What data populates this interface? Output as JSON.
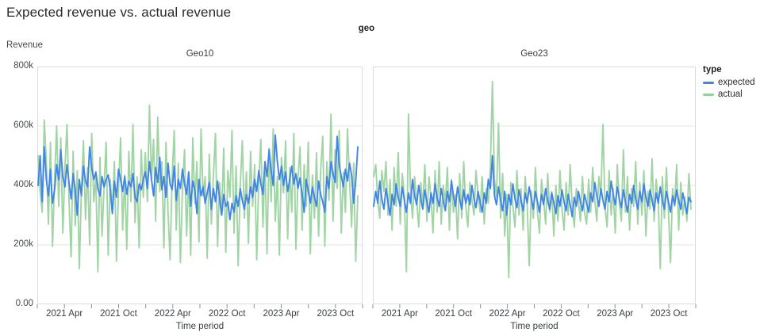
{
  "page": {
    "title": "Expected revenue vs. actual revenue"
  },
  "colors": {
    "expected_blue": "#4285E8",
    "actual_green": "#96CF9A",
    "gridline": "#e4e4e4",
    "panel_border": "#d9dadc",
    "tick": "#8a8f94",
    "axis_text": "#3c4043"
  },
  "chart_data": {
    "type": "line",
    "title": "Expected revenue vs. actual revenue",
    "facet_header": "geo",
    "xlabel": "Time period",
    "ylabel": "Revenue",
    "ylim": [
      0,
      800000
    ],
    "y_tick_labels": [
      "800k",
      "600k",
      "400k",
      "200k",
      "0.00"
    ],
    "x_major_tick_labels": [
      "2021 Apr",
      "2021 Oct",
      "2022 Apr",
      "2022 Oct",
      "2023 Apr",
      "2023 Oct"
    ],
    "x_range": [
      "2021-01",
      "2023-12"
    ],
    "x_frequency": "weekly",
    "values_unit": "revenue in thousands (k)",
    "grid": "horizontal-only",
    "legend": {
      "title": "type",
      "position": "right",
      "items": [
        {
          "label": "expected",
          "color": "#4285E8"
        },
        {
          "label": "actual",
          "color": "#96CF9A"
        }
      ]
    },
    "facets": [
      {
        "name": "Geo10",
        "series": [
          {
            "name": "expected",
            "color": "#4285E8",
            "values": [
              400,
              500,
              345,
              530,
              420,
              365,
              455,
              340,
              385,
              470,
              420,
              520,
              430,
              395,
              470,
              410,
              355,
              440,
              385,
              300,
              420,
              365,
              465,
              415,
              395,
              530,
              460,
              420,
              445,
              390,
              365,
              430,
              395,
              420,
              435,
              385,
              305,
              415,
              360,
              455,
              420,
              380,
              430,
              370,
              415,
              395,
              440,
              360,
              345,
              405,
              385,
              420,
              445,
              390,
              480,
              420,
              365,
              460,
              410,
              495,
              385,
              430,
              360,
              475,
              405,
              385,
              465,
              350,
              420,
              390,
              455,
              405,
              370,
              445,
              330,
              415,
              385,
              305,
              420,
              365,
              395,
              340,
              375,
              410,
              320,
              390,
              345,
              415,
              355,
              300,
              370,
              330,
              345,
              285,
              340,
              310,
              365,
              330,
              390,
              350,
              320,
              370,
              340,
              395,
              360,
              420,
              380,
              450,
              405,
              370,
              480,
              430,
              520,
              450,
              400,
              570,
              480,
              420,
              465,
              400,
              445,
              380,
              420,
              465,
              405,
              440,
              390,
              425,
              370,
              310,
              420,
              380,
              340,
              395,
              360,
              330,
              415,
              370,
              345,
              310,
              430,
              390,
              480,
              440,
              410,
              565,
              470,
              430,
              395,
              455,
              415,
              475,
              435,
              340,
              415,
              530
            ]
          },
          {
            "name": "actual",
            "color": "#96CF9A",
            "values": [
              500,
              380,
              310,
              620,
              480,
              270,
              545,
              195,
              420,
              600,
              330,
              560,
              240,
              455,
              605,
              350,
              160,
              515,
              265,
              450,
              120,
              385,
              550,
              285,
              460,
              200,
              575,
              345,
              430,
              110,
              495,
              230,
              395,
              545,
              165,
              420,
              310,
              480,
              145,
              390,
              560,
              250,
              435,
              185,
              515,
              345,
              605,
              275,
              430,
              190,
              520,
              360,
              510,
              345,
              670,
              420,
              555,
              280,
              630,
              380,
              480,
              190,
              545,
              310,
              150,
              430,
              585,
              250,
              475,
              140,
              390,
              520,
              230,
              445,
              165,
              560,
              340,
              480,
              210,
              590,
              365,
              430,
              155,
              505,
              270,
              435,
              575,
              195,
              410,
              300,
              525,
              175,
              450,
              360,
              585,
              240,
              465,
              130,
              395,
              550,
              290,
              445,
              205,
              515,
              330,
              470,
              150,
              420,
              555,
              260,
              480,
              170,
              525,
              345,
              590,
              280,
              430,
              165,
              495,
              375,
              550,
              220,
              460,
              310,
              575,
              185,
              420,
              530,
              250,
              470,
              330,
              545,
              170,
              435,
              290,
              510,
              230,
              450,
              565,
              195,
              480,
              350,
              640,
              280,
              520,
              390,
              585,
              240,
              445,
              310,
              590,
              420,
              260,
              475,
              145,
              365
            ]
          }
        ]
      },
      {
        "name": "Geo23",
        "series": [
          {
            "name": "expected",
            "color": "#4285E8",
            "values": [
              330,
              380,
              340,
              415,
              355,
              320,
              390,
              345,
              300,
              370,
              335,
              405,
              360,
              330,
              395,
              350,
              310,
              375,
              340,
              420,
              365,
              335,
              400,
              355,
              320,
              385,
              345,
              310,
              375,
              340,
              405,
              360,
              330,
              390,
              350,
              315,
              380,
              345,
              415,
              365,
              330,
              395,
              355,
              320,
              385,
              340,
              370,
              335,
              400,
              355,
              325,
              380,
              345,
              310,
              375,
              340,
              420,
              390,
              500,
              365,
              335,
              395,
              350,
              315,
              380,
              300,
              370,
              335,
              405,
              355,
              325,
              385,
              350,
              315,
              375,
              340,
              395,
              355,
              320,
              380,
              345,
              310,
              370,
              335,
              390,
              350,
              320,
              375,
              340,
              305,
              365,
              330,
              385,
              345,
              315,
              370,
              335,
              295,
              360,
              330,
              380,
              345,
              315,
              370,
              340,
              310,
              375,
              345,
              410,
              365,
              330,
              390,
              350,
              320,
              380,
              345,
              415,
              370,
              335,
              395,
              355,
              325,
              385,
              345,
              310,
              370,
              340,
              400,
              355,
              320,
              380,
              345,
              405,
              360,
              330,
              385,
              350,
              315,
              375,
              340,
              395,
              350,
              320,
              380,
              345,
              310,
              365,
              335,
              385,
              350,
              320,
              375,
              340,
              305,
              360,
              345
            ]
          },
          {
            "name": "actual",
            "color": "#96CF9A",
            "values": [
              430,
              470,
              350,
              290,
              450,
              380,
              480,
              300,
              420,
              250,
              460,
              330,
              510,
              270,
              440,
              360,
              110,
              640,
              380,
              290,
              430,
              350,
              260,
              410,
              330,
              470,
              280,
              430,
              360,
              240,
              450,
              310,
              480,
              270,
              400,
              340,
              460,
              250,
              420,
              310,
              370,
              220,
              440,
              290,
              480,
              330,
              260,
              410,
              350,
              300,
              450,
              370,
              310,
              430,
              270,
              390,
              340,
              460,
              750,
              420,
              360,
              610,
              290,
              440,
              230,
              370,
              90,
              410,
              330,
              260,
              450,
              300,
              390,
              250,
              430,
              340,
              130,
              380,
              290,
              460,
              310,
              240,
              420,
              350,
              270,
              440,
              310,
              380,
              230,
              400,
              280,
              450,
              320,
              250,
              410,
              300,
              470,
              330,
              260,
              390,
              350,
              280,
              430,
              310,
              270,
              420,
              310,
              460,
              350,
              280,
              430,
              370,
              605,
              330,
              260,
              450,
              300,
              390,
              240,
              470,
              340,
              280,
              520,
              310,
              430,
              250,
              390,
              330,
              480,
              270,
              410,
              300,
              450,
              230,
              380,
              320,
              490,
              280,
              420,
              350,
              120,
              430,
              290,
              460,
              310,
              140,
              390,
              330,
              470,
              250,
              410,
              300,
              360,
              280,
              440,
              320
            ]
          }
        ]
      }
    ]
  }
}
